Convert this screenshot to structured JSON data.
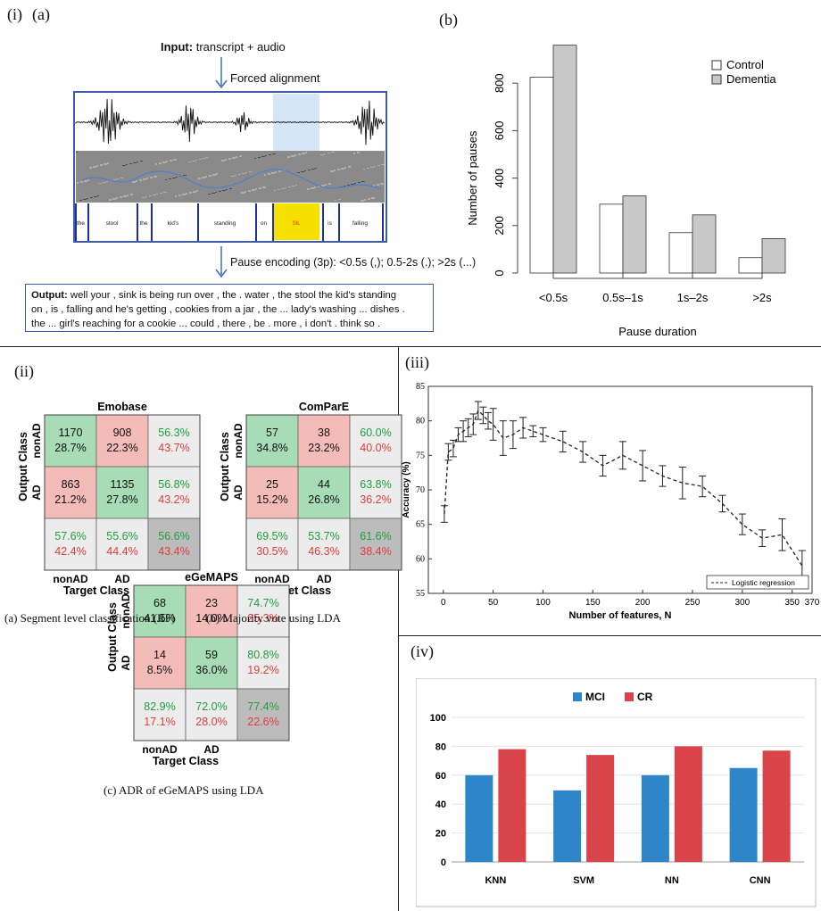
{
  "panel_labels": {
    "i": "(i)",
    "a": "(a)",
    "b": "(b)",
    "ii": "(ii)",
    "iii": "(iii)",
    "iv": "(iv)"
  },
  "pipeline": {
    "input_bold": "Input:",
    "input_text": " transcript + audio",
    "forced_alignment": "Forced alignment",
    "pause_encoding": "Pause encoding (3p): <0.5s (,); 0.5-2s (.); >2s (...)",
    "words": [
      "the",
      "stool",
      "the",
      "kid's",
      "standing",
      "on",
      "SIL",
      "is",
      "falling"
    ],
    "output_bold": "Output:",
    "output_lines": [
      " well your , sink is being run over , the . water , the stool the kid's standing",
      "on , is , falling and he's getting , cookies from a jar , the ... lady's washing ... dishes .",
      "the ... girl's reaching for a cookie ... could , there , be . more , i don't . think so ."
    ]
  },
  "chart_data": [
    {
      "type": "bar",
      "id": "b",
      "categories": [
        "<0.5s",
        "0.5s–1s",
        "1s–2s",
        ">2s"
      ],
      "series": [
        {
          "name": "Control",
          "values": [
            825,
            290,
            170,
            65
          ],
          "color": "#ffffff"
        },
        {
          "name": "Dementia",
          "values": [
            960,
            325,
            245,
            145
          ],
          "color": "#c8c8c8"
        }
      ],
      "xlabel": "Pause duration",
      "ylabel": "Number of pauses",
      "yticks": [
        0,
        200,
        400,
        600,
        800
      ],
      "ylim": [
        0,
        1000
      ],
      "legend": "top-right"
    },
    {
      "type": "table",
      "id": "cm-emobase",
      "title": "Emobase",
      "row_label": "Output Class",
      "col_label": "Target Class",
      "row_names": [
        "nonAD",
        "AD"
      ],
      "col_names": [
        "nonAD",
        "AD"
      ],
      "cells": [
        [
          "1170",
          "28.7%"
        ],
        [
          "908",
          "22.3%"
        ],
        [
          "56.3%",
          "43.7%"
        ],
        [
          "863",
          "21.2%"
        ],
        [
          "1135",
          "27.8%"
        ],
        [
          "56.8%",
          "43.2%"
        ],
        [
          "57.6%",
          "42.4%"
        ],
        [
          "55.6%",
          "44.4%"
        ],
        [
          "56.6%",
          "43.4%"
        ]
      ]
    },
    {
      "type": "table",
      "id": "cm-compare",
      "title": "ComParE",
      "row_label": "Output Class",
      "col_label": "Target Class",
      "row_names": [
        "nonAD",
        "AD"
      ],
      "col_names": [
        "nonAD",
        "AD"
      ],
      "cells": [
        [
          "57",
          "34.8%"
        ],
        [
          "38",
          "23.2%"
        ],
        [
          "60.0%",
          "40.0%"
        ],
        [
          "25",
          "15.2%"
        ],
        [
          "44",
          "26.8%"
        ],
        [
          "63.8%",
          "36.2%"
        ],
        [
          "69.5%",
          "30.5%"
        ],
        [
          "53.7%",
          "46.3%"
        ],
        [
          "61.6%",
          "38.4%"
        ]
      ]
    },
    {
      "type": "table",
      "id": "cm-egemaps",
      "title": "eGeMAPS",
      "row_label": "Output Class",
      "col_label": "Target Class",
      "row_names": [
        "nonAD",
        "AD"
      ],
      "col_names": [
        "nonAD",
        "AD"
      ],
      "cells": [
        [
          "68",
          "41.5%"
        ],
        [
          "23",
          "14.0%"
        ],
        [
          "74.7%",
          "25.3%"
        ],
        [
          "14",
          "8.5%"
        ],
        [
          "59",
          "36.0%"
        ],
        [
          "80.8%",
          "19.2%"
        ],
        [
          "82.9%",
          "17.1%"
        ],
        [
          "72.0%",
          "28.0%"
        ],
        [
          "77.4%",
          "22.6%"
        ]
      ]
    },
    {
      "type": "line",
      "id": "iii",
      "x": [
        1,
        5,
        10,
        15,
        20,
        25,
        30,
        35,
        40,
        45,
        50,
        60,
        70,
        80,
        90,
        100,
        120,
        140,
        160,
        180,
        200,
        220,
        240,
        260,
        280,
        300,
        320,
        340,
        360
      ],
      "y": [
        66.5,
        75.5,
        76,
        78,
        78.5,
        79,
        79.5,
        81.5,
        80.8,
        80,
        79.5,
        77.5,
        78,
        79,
        78.5,
        78,
        77,
        75.5,
        73.5,
        75,
        73.5,
        72,
        71,
        70.5,
        68,
        65,
        63,
        63.5,
        59
      ],
      "err": [
        1.2,
        1.2,
        1.2,
        1,
        1.5,
        1.3,
        1.5,
        1.3,
        1.2,
        1.2,
        2.3,
        2.5,
        2,
        1.5,
        0.8,
        1,
        1.5,
        1.5,
        1.5,
        2,
        2.2,
        1.5,
        2.3,
        1.5,
        1.2,
        1.5,
        1.2,
        2.3,
        2.2
      ],
      "series": [
        {
          "name": "Logistic regression"
        }
      ],
      "xlabel": "Number of features, N",
      "ylabel": "Accuracy (%)",
      "xticks": [
        0,
        50,
        100,
        150,
        200,
        250,
        300,
        350,
        370
      ],
      "yticks": [
        55,
        60,
        65,
        70,
        75,
        80,
        85
      ],
      "xlim": [
        -15,
        370
      ],
      "ylim": [
        55,
        85
      ],
      "legend": "bottom-right"
    },
    {
      "type": "bar",
      "id": "iv",
      "categories": [
        "KNN",
        "SVM",
        "NN",
        "CNN"
      ],
      "series": [
        {
          "name": "MCI",
          "values": [
            60,
            49.5,
            60,
            65
          ],
          "color": "#2e86c8"
        },
        {
          "name": "CR",
          "values": [
            78,
            74,
            80,
            77
          ],
          "color": "#d9434a"
        }
      ],
      "yticks": [
        0,
        20,
        40,
        60,
        80,
        100
      ],
      "ylim": [
        0,
        100
      ],
      "legend": "top-center"
    }
  ],
  "captions": {
    "a": "(a) Segment level classification (RF)",
    "b": "(b) Majority vote using LDA",
    "c": "(c) ADR of eGeMAPS using LDA"
  },
  "colors": {
    "green_cell": "#a7dcb6",
    "red_cell": "#f4bcb8",
    "grey_cell": "#ececec",
    "dark_cell": "#bcbcbc",
    "green_text": "#1f9e3d",
    "red_text": "#e03c3c",
    "arrow": "#3a6fc4",
    "box_border": "#3c5ca8",
    "sil_yellow": "#f6e000"
  }
}
